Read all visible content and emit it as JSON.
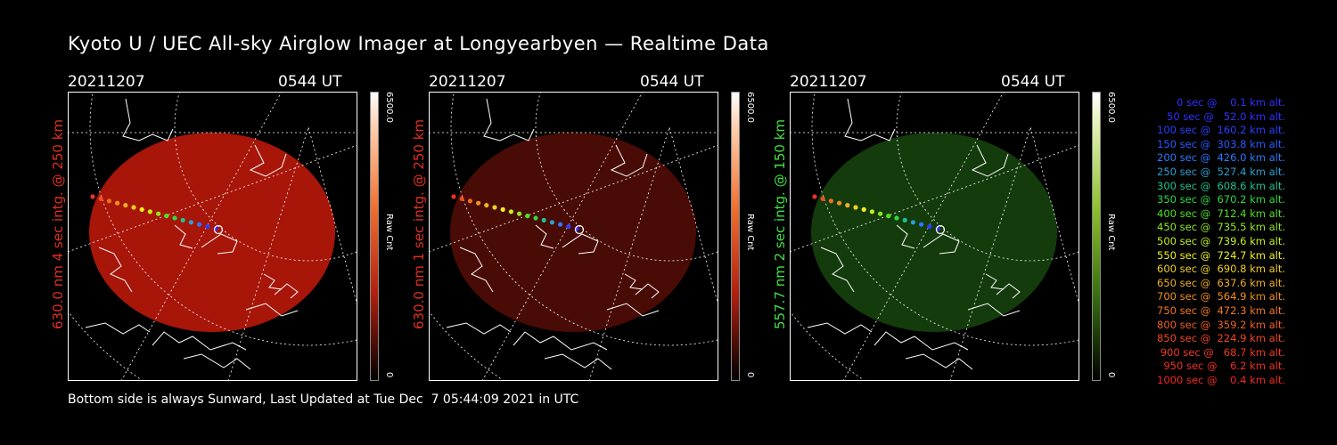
{
  "title": "Kyoto U / UEC All-sky Airglow Imager at Longyearbyen — Realtime Data",
  "footer": "Bottom side is always Sunward, Last Updated at Tue Dec  7 05:44:09 2021 in UTC",
  "panels": [
    {
      "date": "20211207",
      "time": "0544 UT",
      "channel_label": "630.0 nm 4 sec intg. @ 250 km",
      "colorbar_max": "6500.0",
      "colorbar_min": "0",
      "colorbar_unit": "Raw Cnt",
      "label_color": "#e03020",
      "glow_color": "#c41a0a",
      "glow_opacity": 0.85
    },
    {
      "date": "20211207",
      "time": "0544 UT",
      "channel_label": "630.0 nm 1 sec intg. @ 250 km",
      "colorbar_max": "6500.0",
      "colorbar_min": "0",
      "colorbar_unit": "Raw Cnt",
      "label_color": "#e03020",
      "glow_color": "#7a1208",
      "glow_opacity": 0.6
    },
    {
      "date": "20211207",
      "time": "0544 UT",
      "channel_label": "557.7 nm 2 sec intg. @ 150 km",
      "colorbar_max": "6500.0",
      "colorbar_min": "0",
      "colorbar_unit": "Raw Cnt",
      "label_color": "#40e040",
      "glow_color": "#1f5a12",
      "glow_opacity": 0.65
    }
  ],
  "legend": [
    {
      "sec": "0",
      "km": "0.1",
      "color": "#3030ff"
    },
    {
      "sec": "50",
      "km": "52.0",
      "color": "#3030ff"
    },
    {
      "sec": "100",
      "km": "160.2",
      "color": "#2a40ff"
    },
    {
      "sec": "150",
      "km": "303.8",
      "color": "#2a5aff"
    },
    {
      "sec": "200",
      "km": "426.0",
      "color": "#2a7aff"
    },
    {
      "sec": "250",
      "km": "527.4",
      "color": "#2aa0d0"
    },
    {
      "sec": "300",
      "km": "608.6",
      "color": "#20c090"
    },
    {
      "sec": "350",
      "km": "670.2",
      "color": "#30d840"
    },
    {
      "sec": "400",
      "km": "712.4",
      "color": "#50e020"
    },
    {
      "sec": "450",
      "km": "735.5",
      "color": "#90e820"
    },
    {
      "sec": "500",
      "km": "739.6",
      "color": "#c0f020"
    },
    {
      "sec": "550",
      "km": "724.7",
      "color": "#f0f020"
    },
    {
      "sec": "600",
      "km": "690.8",
      "color": "#f0d020"
    },
    {
      "sec": "650",
      "km": "637.6",
      "color": "#f0b020"
    },
    {
      "sec": "700",
      "km": "564.9",
      "color": "#f09020"
    },
    {
      "sec": "750",
      "km": "472.3",
      "color": "#f07820"
    },
    {
      "sec": "800",
      "km": "359.2",
      "color": "#f06020"
    },
    {
      "sec": "850",
      "km": "224.9",
      "color": "#f04820"
    },
    {
      "sec": "900",
      "km": "68.7",
      "color": "#f03a20"
    },
    {
      "sec": "950",
      "km": "6.2",
      "color": "#f03020"
    },
    {
      "sec": "1000",
      "km": "0.4",
      "color": "#f02a20"
    }
  ]
}
